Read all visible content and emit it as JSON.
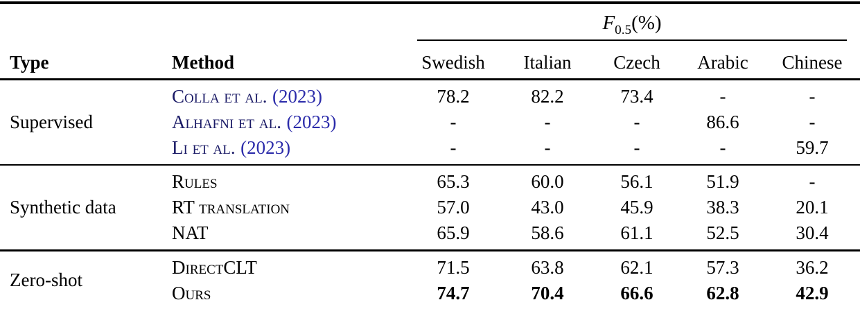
{
  "table": {
    "metric": {
      "symbol": "F",
      "subscript": "0.5",
      "suffix": "(%)"
    },
    "columns": [
      "Type",
      "Method",
      "Swedish",
      "Italian",
      "Czech",
      "Arabic",
      "Chinese"
    ],
    "groups": [
      {
        "type": "Supervised",
        "rows": [
          {
            "method": "Colla et al.",
            "year": "(2023)",
            "citation": true,
            "values": [
              "78.2",
              "82.2",
              "73.4",
              "-",
              "-"
            ]
          },
          {
            "method": "Alhafni et al.",
            "year": "(2023)",
            "citation": true,
            "values": [
              "-",
              "-",
              "-",
              "86.6",
              "-"
            ]
          },
          {
            "method": "Li et al.",
            "year": "(2023)",
            "citation": true,
            "values": [
              "-",
              "-",
              "-",
              "-",
              "59.7"
            ]
          }
        ]
      },
      {
        "type": "Synthetic data",
        "rows": [
          {
            "method": "Rules",
            "values": [
              "65.3",
              "60.0",
              "56.1",
              "51.9",
              "-"
            ]
          },
          {
            "method": "RT translation",
            "values": [
              "57.0",
              "43.0",
              "45.9",
              "38.3",
              "20.1"
            ]
          },
          {
            "method": "NAT",
            "values": [
              "65.9",
              "58.6",
              "61.1",
              "52.5",
              "30.4"
            ]
          }
        ]
      },
      {
        "type": "Zero-shot",
        "rows": [
          {
            "method": "DirectCLT",
            "values": [
              "71.5",
              "63.8",
              "62.1",
              "57.3",
              "36.2"
            ]
          },
          {
            "method": "Ours",
            "bold": true,
            "values": [
              "74.7",
              "70.4",
              "66.6",
              "62.8",
              "42.9"
            ]
          }
        ]
      }
    ],
    "colors": {
      "background": "#ffffff",
      "text": "#000000",
      "rule": "#000000",
      "citation_name": "#1a1a66",
      "citation_year": "#2b2baa"
    }
  }
}
